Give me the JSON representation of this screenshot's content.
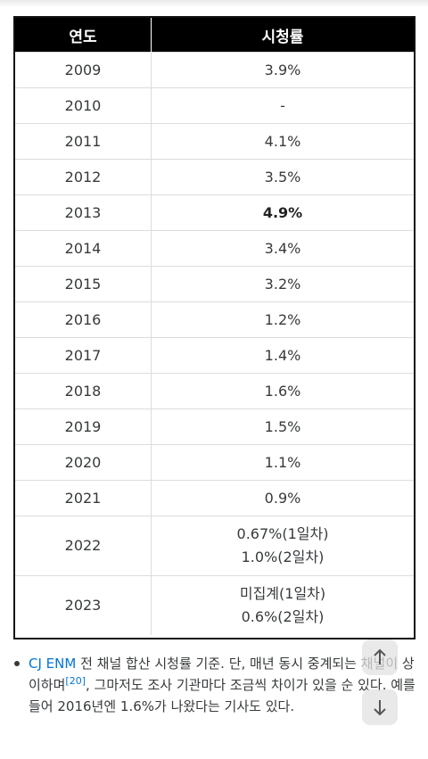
{
  "table": {
    "headers": [
      "연도",
      "시청률"
    ],
    "rows": [
      {
        "year": "2009",
        "rating": "3.9%"
      },
      {
        "year": "2010",
        "rating": "-"
      },
      {
        "year": "2011",
        "rating": "4.1%"
      },
      {
        "year": "2012",
        "rating": "3.5%"
      },
      {
        "year": "2013",
        "rating": "4.9%",
        "bold": true
      },
      {
        "year": "2014",
        "rating": "3.4%"
      },
      {
        "year": "2015",
        "rating": "3.2%"
      },
      {
        "year": "2016",
        "rating": "1.2%"
      },
      {
        "year": "2017",
        "rating": "1.4%"
      },
      {
        "year": "2018",
        "rating": "1.6%"
      },
      {
        "year": "2019",
        "rating": "1.5%"
      },
      {
        "year": "2020",
        "rating": "1.1%"
      },
      {
        "year": "2021",
        "rating": "0.9%"
      },
      {
        "year": "2022",
        "rating_lines": [
          "0.67%(1일차)",
          "1.0%(2일차)"
        ]
      },
      {
        "year": "2023",
        "rating_lines": [
          "미집계(1일차)",
          "0.6%(2일차)"
        ]
      }
    ]
  },
  "note": {
    "link": "CJ ENM",
    "text1": " 전 채널 합산 시청률 기준. 단, 매년 동시 중계되는 채널이 상이하며",
    "footnote": "[20]",
    "text2": ", 그마저도 조사 기관마다 조금씩 차이가 있을 순 있다. 예를 들어 2016년엔 1.6%가 나왔다는 기사도 있다."
  },
  "icons": [
    "arrow-up-icon",
    "arrow-down-icon"
  ]
}
